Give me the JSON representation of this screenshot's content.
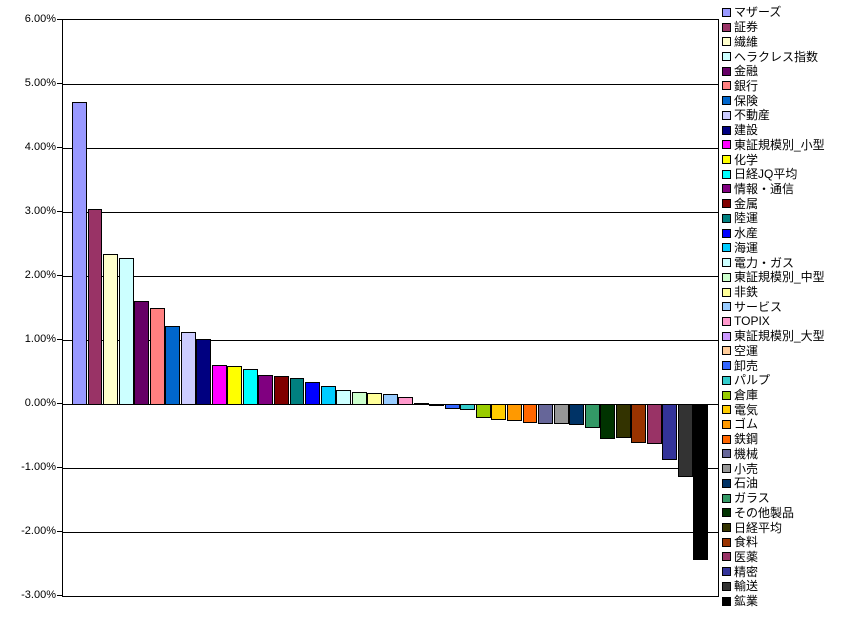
{
  "window": {
    "background_color": "#FFFFFF"
  },
  "chart_data": {
    "type": "bar",
    "title": "",
    "xlabel": "",
    "ylabel": "",
    "ylim": [
      -3,
      6
    ],
    "grid": true,
    "gridline_step_pct": 1,
    "legend_position": "right",
    "y_ticks": [
      "6.00%",
      "5.00%",
      "4.00%",
      "3.00%",
      "2.00%",
      "1.00%",
      "0.00%",
      "-1.00%",
      "-2.00%",
      "-3.00%"
    ],
    "y_tick_values": [
      6,
      5,
      4,
      3,
      2,
      1,
      0,
      -1,
      -2,
      -3
    ],
    "categories": [
      "マザーズ",
      "証券",
      "繊維",
      "ヘラクレス指数",
      "金融",
      "銀行",
      "保険",
      "不動産",
      "建設",
      "東証規模別_小型",
      "化学",
      "日経JQ平均",
      "情報・通信",
      "金属",
      "陸運",
      "水産",
      "海運",
      "電力・ガス",
      "東証規模別_中型",
      "非鉄",
      "サービス",
      "TOPIX",
      "東証規模別_大型",
      "空運",
      "卸売",
      "パルプ",
      "倉庫",
      "電気",
      "ゴム",
      "鉄鋼",
      "機械",
      "小売",
      "石油",
      "ガラス",
      "その他製品",
      "日経平均",
      "食料",
      "医薬",
      "精密",
      "輸送",
      "鉱業"
    ],
    "values": [
      4.72,
      3.05,
      2.34,
      2.28,
      1.61,
      1.5,
      1.22,
      1.13,
      1.02,
      0.61,
      0.6,
      0.55,
      0.45,
      0.44,
      0.41,
      0.34,
      0.28,
      0.22,
      0.19,
      0.17,
      0.16,
      0.11,
      0.02,
      -0.02,
      -0.06,
      -0.08,
      -0.2,
      -0.23,
      -0.25,
      -0.28,
      -0.3,
      -0.3,
      -0.31,
      -0.36,
      -0.53,
      -0.51,
      -0.59,
      -0.61,
      -0.86,
      -1.13,
      -2.42
    ],
    "colors": [
      "#9999FF",
      "#993366",
      "#FFFFCC",
      "#CCFFFF",
      "#660066",
      "#FF8080",
      "#0066CC",
      "#CCCCFF",
      "#000080",
      "#FF00FF",
      "#FFFF00",
      "#00FFFF",
      "#800080",
      "#800000",
      "#008080",
      "#0000FF",
      "#00CCFF",
      "#CCFFFF",
      "#CCFFCC",
      "#FFFF99",
      "#99CCFF",
      "#FF99CC",
      "#CC99FF",
      "#FFCC99",
      "#3366FF",
      "#33CCCC",
      "#99CC00",
      "#FFCC00",
      "#FF9900",
      "#FF6600",
      "#666699",
      "#969696",
      "#003366",
      "#339966",
      "#003300",
      "#333300",
      "#993300",
      "#993366",
      "#333399",
      "#333333",
      "#000000"
    ],
    "bar_border_color": "#000000",
    "gridline_color": "#000000"
  }
}
